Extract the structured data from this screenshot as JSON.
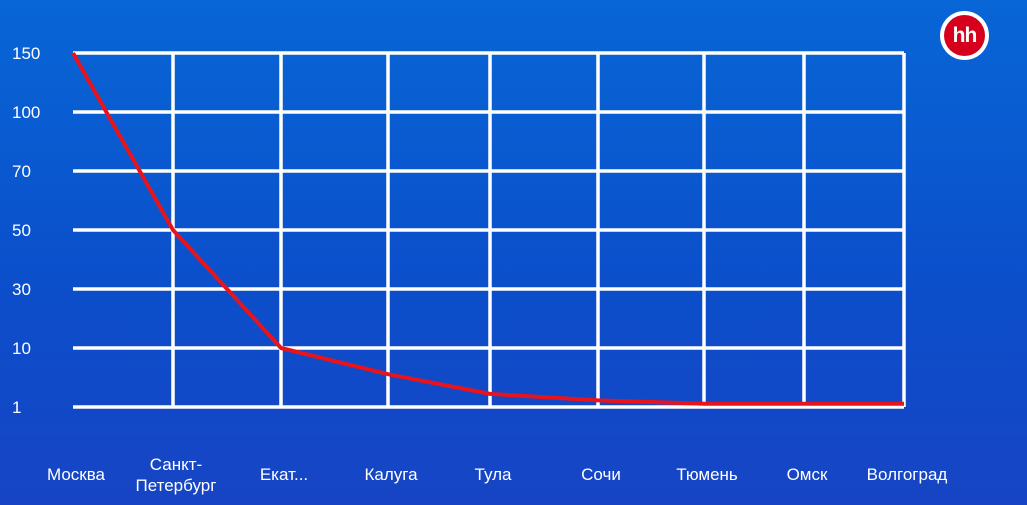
{
  "brand": {
    "logo_text": "hh",
    "colors": {
      "background": "#0b55d0",
      "line": "#e8141c",
      "grid": "#ffffff",
      "logo": "#d6001c"
    }
  },
  "chart_data": {
    "type": "line",
    "categories": [
      "Москва",
      "Санкт-\nПетербург",
      "Екат...",
      "Калуга",
      "Тула",
      "Сочи",
      "Тюмень",
      "Омск",
      "Волгоград"
    ],
    "y_ticks": [
      "1",
      "10",
      "30",
      "50",
      "70",
      "100",
      "150"
    ],
    "series": [
      {
        "values": [
          150,
          50,
          10,
          6,
          3,
          2,
          1.5,
          1.5,
          1.5
        ]
      }
    ],
    "grid": true,
    "legend": "none"
  }
}
